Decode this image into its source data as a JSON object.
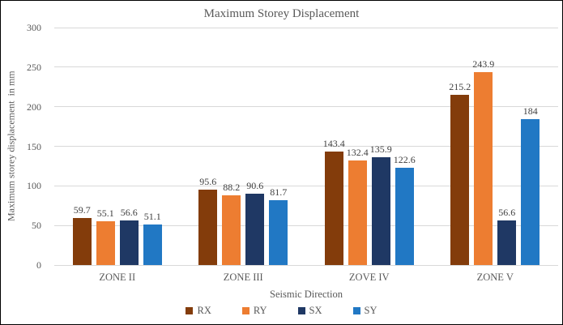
{
  "title": "Maximum Storey Displacement",
  "y_axis": {
    "label": "Maximum storey displacement  in mm",
    "ticks": [
      0,
      50,
      100,
      150,
      200,
      250,
      300
    ],
    "max": 300
  },
  "x_axis": {
    "label": "Seismic Direction",
    "categories": [
      "ZONE II",
      "ZONE III",
      "ZOVE IV",
      "ZONE V"
    ]
  },
  "legend": {
    "items": [
      "RX",
      "RY",
      "SX",
      "SY"
    ]
  },
  "chart_data": {
    "type": "bar",
    "title": "Maximum Storey Displacement",
    "xlabel": "Seismic Direction",
    "ylabel": "Maximum storey displacement  in mm",
    "ylim": [
      0,
      300
    ],
    "grid": true,
    "legend_position": "bottom",
    "categories": [
      "ZONE II",
      "ZONE III",
      "ZOVE IV",
      "ZONE V"
    ],
    "series": [
      {
        "name": "RX",
        "color": "#833C0B",
        "values": [
          59.7,
          95.6,
          143.4,
          215.2
        ]
      },
      {
        "name": "RY",
        "color": "#ED7D31",
        "values": [
          55.1,
          88.2,
          132.4,
          243.9
        ]
      },
      {
        "name": "SX",
        "color": "#1F3864",
        "values": [
          56.6,
          90.6,
          135.9,
          56.6
        ]
      },
      {
        "name": "SY",
        "color": "#2178C4",
        "values": [
          51.1,
          81.7,
          122.6,
          184
        ]
      }
    ]
  },
  "colors": {
    "grid": "#D9D9D9",
    "axis_text": "#595959",
    "data_label": "#404040",
    "border": "#000000",
    "background": "#FFFFFF"
  }
}
